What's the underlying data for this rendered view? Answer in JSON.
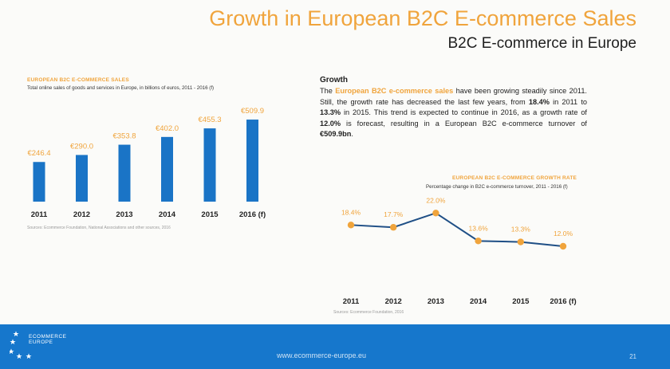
{
  "header": {
    "title": "Growth in European B2C E-commerce Sales",
    "subtitle": "B2C E-commerce in Europe"
  },
  "colors": {
    "accent": "#f0a43c",
    "bar": "#1a74c6",
    "line": "#1f4f86",
    "footer": "#1677cc"
  },
  "chart_data": [
    {
      "type": "bar",
      "title": "EUROPEAN B2C E-COMMERCE SALES",
      "subtitle": "Total online sales of goods and services in Europe, in billions of euros, 2011 - 2016 (f)",
      "categories": [
        "2011",
        "2012",
        "2013",
        "2014",
        "2015",
        "2016 (f)"
      ],
      "values": [
        246.4,
        290.0,
        353.8,
        402.0,
        455.3,
        509.9
      ],
      "data_labels": [
        "€246.4",
        "€290.0",
        "€353.8",
        "€402.0",
        "€455.3",
        "€509.9"
      ],
      "source": "Sources: Ecommerce Foundation, National Associations and other sources, 2016",
      "ylim": [
        0,
        520
      ]
    },
    {
      "type": "line",
      "title": "EUROPEAN B2C E-COMMERCE GROWTH RATE",
      "subtitle": "Percentage change in B2C e-commerce turnover, 2011 - 2016 (f)",
      "categories": [
        "2011",
        "2012",
        "2013",
        "2014",
        "2015",
        "2016 (f)"
      ],
      "values": [
        18.4,
        17.7,
        22.0,
        13.6,
        13.3,
        12.0
      ],
      "data_labels": [
        "18.4%",
        "17.7%",
        "22.0%",
        "13.6%",
        "13.3%",
        "12.0%"
      ],
      "source": "Sources: Ecommerce Foundation, 2016",
      "ylim": [
        0,
        25
      ]
    }
  ],
  "growth": {
    "heading": "Growth",
    "p1": "The ",
    "hl1": "European B2C e-commerce sales",
    "p2": " have been growing steadily since 2011. Still, the growth rate has decreased the last few years, from ",
    "b1": "18.4%",
    "p3": " in 2011 to ",
    "b2": "13.3%",
    "p4": " in 2015. This trend is expected to continue in 2016, as a growth rate of ",
    "b3": "12.0%",
    "p5": " is forecast, resulting in a European B2C e-commerce turnover of ",
    "b4": "€509.9bn",
    "p6": "."
  },
  "footer": {
    "logo_line1": "ECOMMERCE",
    "logo_line2": "EUROPE",
    "url": "www.ecommerce-europe.eu",
    "page": "21"
  }
}
